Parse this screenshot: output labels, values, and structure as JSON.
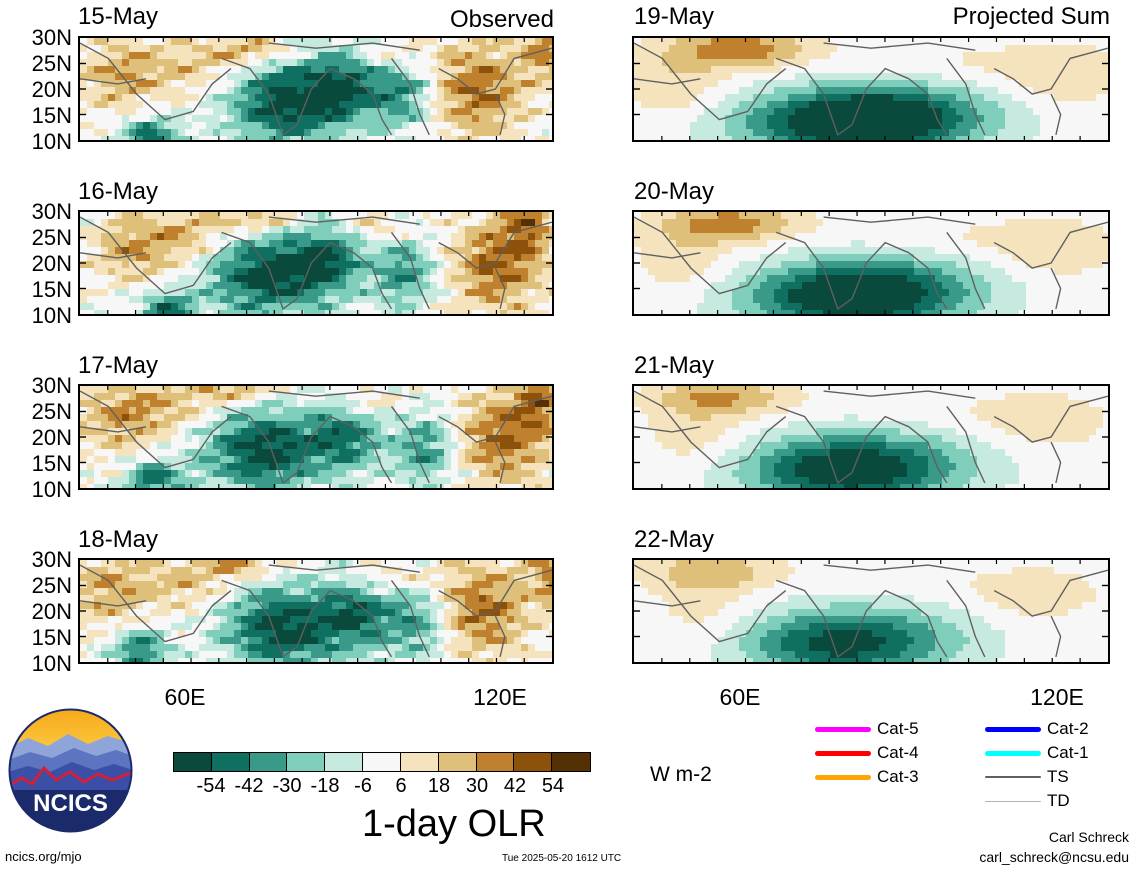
{
  "observed_label": "Observed",
  "projected_label": "Projected Sum",
  "panels": {
    "observed": [
      {
        "date": "15-May"
      },
      {
        "date": "16-May"
      },
      {
        "date": "17-May"
      },
      {
        "date": "18-May"
      }
    ],
    "projected": [
      {
        "date": "19-May"
      },
      {
        "date": "20-May"
      },
      {
        "date": "21-May"
      },
      {
        "date": "22-May"
      }
    ]
  },
  "lat_labels": [
    "30N",
    "25N",
    "20N",
    "15N",
    "10N"
  ],
  "lon_labels": [
    "60E",
    "120E"
  ],
  "colorbar": {
    "title": "1-day OLR",
    "units": "W m-2",
    "tick_labels": [
      "-54",
      "-42",
      "-30",
      "-18",
      "-6",
      "6",
      "18",
      "30",
      "42",
      "54"
    ],
    "colors": [
      "#0a4a3c",
      "#0f6f60",
      "#3a9a8a",
      "#7fcdbb",
      "#c7eae0",
      "#f7f7f7",
      "#f4e3bd",
      "#dfc07a",
      "#bf812d",
      "#8c510a",
      "#543005"
    ]
  },
  "track_legend": [
    {
      "label": "Cat-5",
      "color": "#ff00ff"
    },
    {
      "label": "Cat-4",
      "color": "#ff0000"
    },
    {
      "label": "Cat-3",
      "color": "#ffa500"
    },
    {
      "label": "Cat-2",
      "color": "#0000ff"
    },
    {
      "label": "Cat-1",
      "color": "#00ffff"
    },
    {
      "label": "TS",
      "color": "#606060"
    },
    {
      "label": "TD",
      "color": "#b0b0b0"
    }
  ],
  "logo_text": "NCICS",
  "footer": {
    "url": "ncics.org/mjo",
    "timestamp": "Tue 2025-05-20 1612 UTC",
    "author": "Carl Schreck",
    "email": "carl_schreck@ncsu.edu"
  }
}
